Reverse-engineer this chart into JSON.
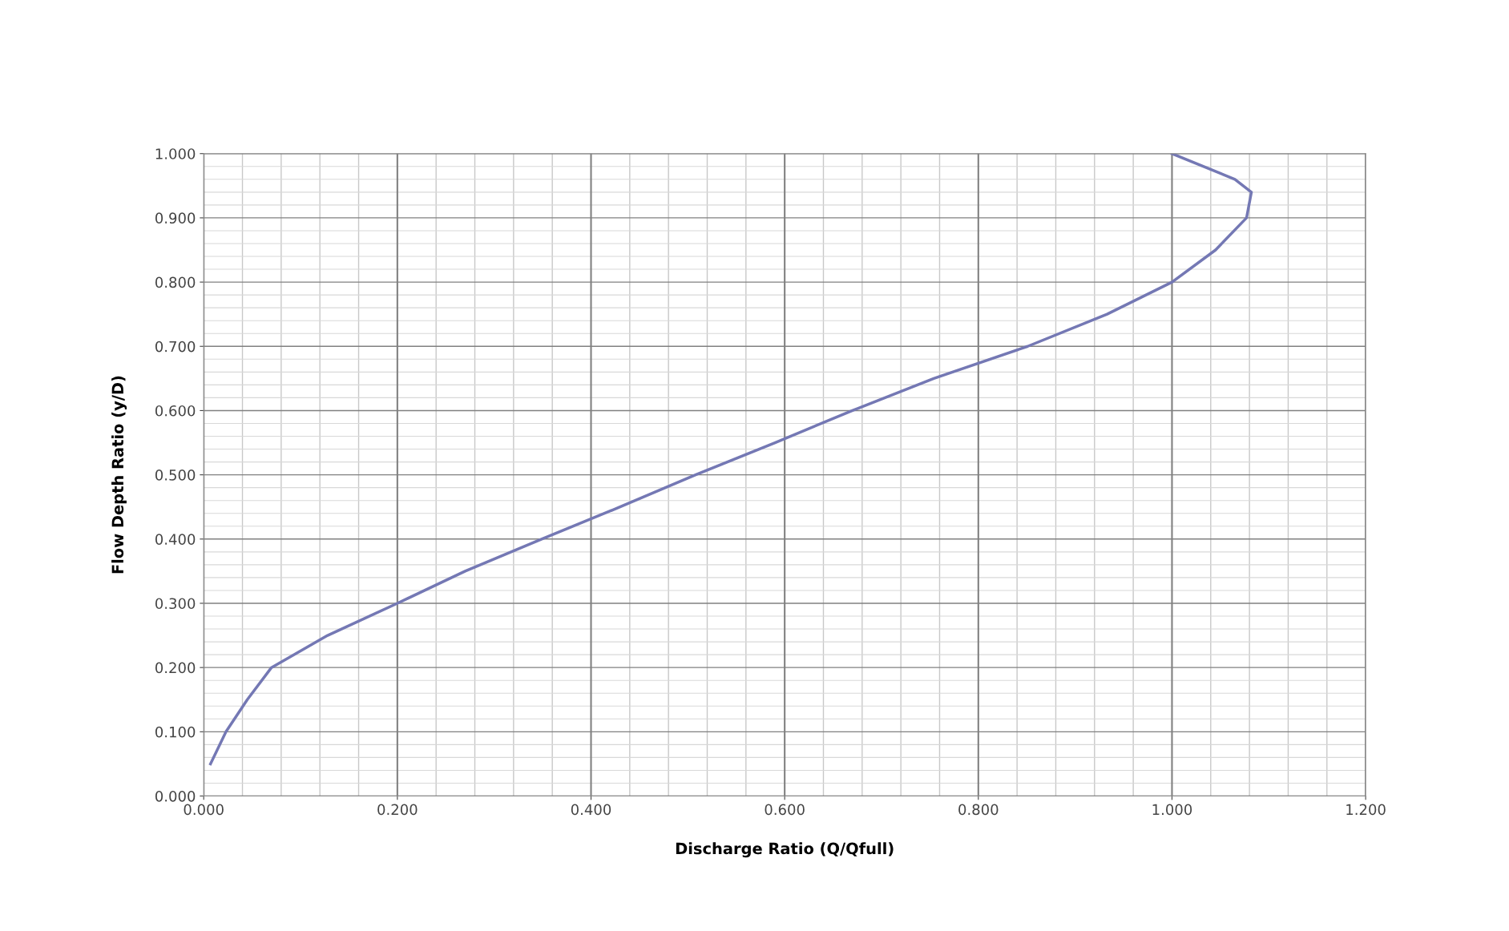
{
  "chart_data": {
    "type": "line",
    "xlabel": "Discharge Ratio (Q/Qfull)",
    "ylabel": "Flow Depth Ratio (y/D)",
    "x": [
      0.007,
      0.023,
      0.045,
      0.07,
      0.128,
      0.2,
      0.27,
      0.349,
      0.43,
      0.508,
      0.59,
      0.67,
      0.754,
      0.851,
      0.933,
      1.0,
      1.045,
      1.077,
      1.082,
      1.065,
      1.0
    ],
    "series": [
      {
        "color": "#7478b4",
        "values": [
          0.05,
          0.1,
          0.15,
          0.2,
          0.25,
          0.3,
          0.35,
          0.4,
          0.45,
          0.5,
          0.55,
          0.6,
          0.65,
          0.7,
          0.75,
          0.8,
          0.85,
          0.9,
          0.94,
          0.96,
          1.0
        ]
      }
    ],
    "xlim": [
      0,
      1.2
    ],
    "ylim": [
      0,
      1
    ],
    "xticks": [
      {
        "value": 0,
        "label": "0.000"
      },
      {
        "value": 0.2,
        "label": "0.200"
      },
      {
        "value": 0.4,
        "label": "0.400"
      },
      {
        "value": 0.6,
        "label": "0.600"
      },
      {
        "value": 0.8,
        "label": "0.800"
      },
      {
        "value": 1.0,
        "label": "1.000"
      },
      {
        "value": 1.2,
        "label": "1.200"
      }
    ],
    "yticks": [
      {
        "value": 0,
        "label": "0.000"
      },
      {
        "value": 0.1,
        "label": "0.100"
      },
      {
        "value": 0.2,
        "label": "0.200"
      },
      {
        "value": 0.3,
        "label": "0.300"
      },
      {
        "value": 0.4,
        "label": "0.400"
      },
      {
        "value": 0.5,
        "label": "0.500"
      },
      {
        "value": 0.6,
        "label": "0.600"
      },
      {
        "value": 0.7,
        "label": "0.700"
      },
      {
        "value": 0.8,
        "label": "0.800"
      },
      {
        "value": 0.9,
        "label": "0.900"
      },
      {
        "value": 1.0,
        "label": "1.000"
      }
    ],
    "grid": true,
    "marker": "none",
    "line_style": "solid"
  }
}
